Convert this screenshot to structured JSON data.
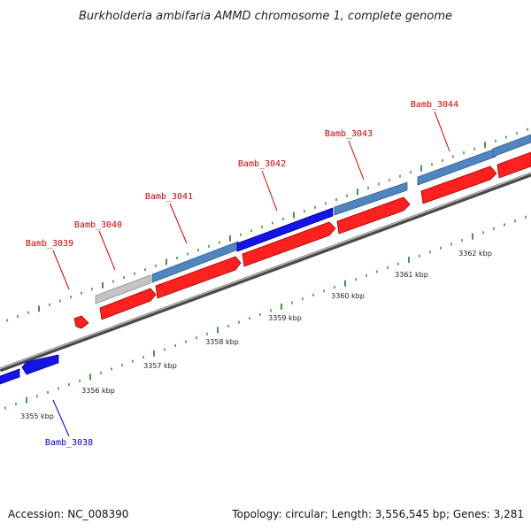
{
  "title": "Burkholderia ambifaria AMMD chromosome 1, complete genome",
  "footer": {
    "accession": "Accession: NC_008390",
    "summary": "Topology: circular; Length: 3,556,545 bp; Genes: 3,281"
  },
  "colors": {
    "background": "#ffffff",
    "forward_label": "#cc0000",
    "reverse_label": "#0000cc",
    "forward_gene": "#ff2020",
    "reverse_gene_dark": "#1414e6",
    "reverse_gene_steel": "#4f86c0",
    "gray_gene": "#c4c4c4",
    "tick": "#1a7a1a",
    "backbone": "#7a7a7a"
  },
  "kbp_labels": [
    "3355 kbp",
    "3356 kbp",
    "3357 kbp",
    "3358 kbp",
    "3359 kbp",
    "3360 kbp",
    "3361 kbp",
    "3362 kbp"
  ],
  "gene_labels": [
    "Bamb_3038",
    "Bamb_3039",
    "Bamb_3040",
    "Bamb_3041",
    "Bamb_3042",
    "Bamb_3043",
    "Bamb_3044"
  ]
}
